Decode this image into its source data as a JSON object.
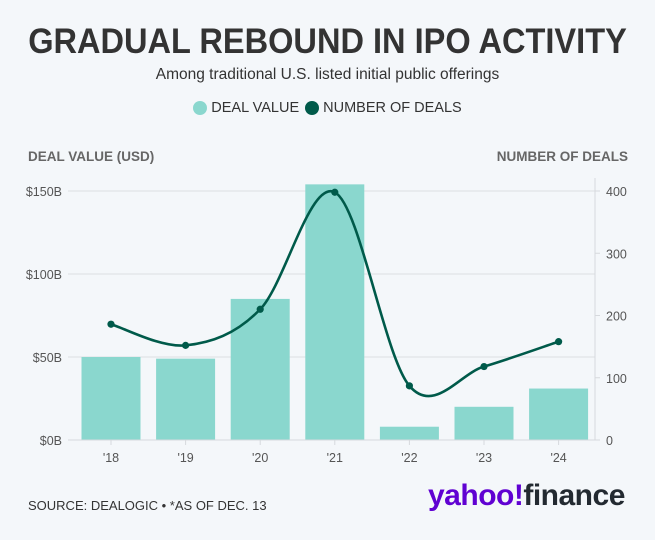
{
  "header": {
    "title": "GRADUAL REBOUND IN IPO ACTIVITY",
    "subtitle": "Among traditional U.S. listed initial public offerings"
  },
  "legend": [
    {
      "label": "DEAL VALUE",
      "color": "#8ad7ce"
    },
    {
      "label": "NUMBER OF DEALS",
      "color": "#005a4a"
    }
  ],
  "footer": {
    "source": "SOURCE: DEALOGIC • *AS OF DEC. 13",
    "logo_part1": "yahoo!",
    "logo_part2": "finance"
  },
  "chart_data": {
    "type": "bar+line",
    "title": "GRADUAL REBOUND IN IPO ACTIVITY",
    "subtitle": "Among traditional U.S. listed initial public offerings",
    "categories": [
      "'18",
      "'19",
      "'20",
      "'21",
      "'22",
      "'23",
      "'24"
    ],
    "series": [
      {
        "name": "DEAL VALUE",
        "type": "bar",
        "axis": "left",
        "unit": "USD billions",
        "color": "#8ad7ce",
        "values": [
          50,
          49,
          85,
          154,
          8,
          20,
          31
        ]
      },
      {
        "name": "NUMBER OF DEALS",
        "type": "line",
        "axis": "right",
        "color": "#005a4a",
        "values": [
          186,
          152,
          210,
          398,
          87,
          118,
          158
        ]
      }
    ],
    "left_axis": {
      "label": "DEAL VALUE (USD)",
      "ticks": [
        0,
        50,
        100,
        150
      ],
      "tick_labels": [
        "$0B",
        "$50B",
        "$100B",
        "$150B"
      ],
      "range": [
        0,
        150
      ]
    },
    "right_axis": {
      "label": "NUMBER OF DEALS",
      "ticks": [
        0,
        100,
        200,
        300,
        400
      ],
      "tick_labels": [
        "0",
        "100",
        "200",
        "300",
        "400"
      ],
      "range": [
        0,
        400
      ]
    },
    "grid": true,
    "legend_position": "top-center"
  }
}
